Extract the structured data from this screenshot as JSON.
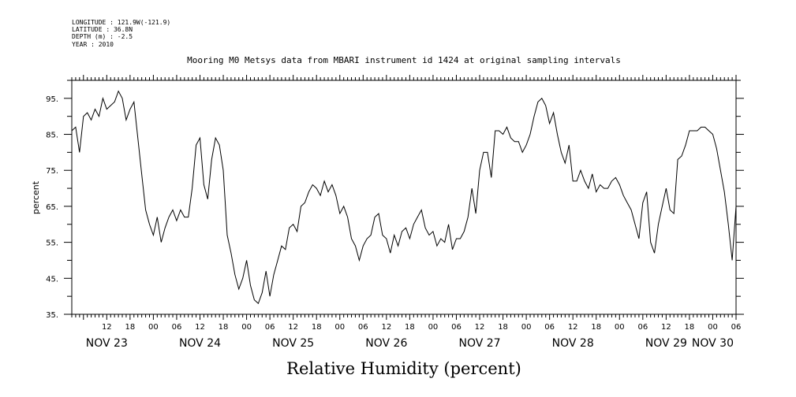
{
  "meta": {
    "longitude": "LONGITUDE : 121.9W(-121.9)",
    "latitude": "LATITUDE : 36.8N",
    "depth": "DEPTH (m) : -2.5",
    "year": "YEAR : 2010"
  },
  "chart_data": {
    "type": "line",
    "title": "Mooring M0 Metsys data from MBARI instrument id 1424 at original sampling intervals",
    "xlabel": "Relative Humidity (percent)",
    "ylabel": "percent",
    "ylim": [
      35,
      100
    ],
    "y_ticks": [
      35,
      45,
      55,
      65,
      75,
      85,
      95
    ],
    "y_tick_labels": [
      "35.",
      "45.",
      "55.",
      "65.",
      "75.",
      "85.",
      "95."
    ],
    "x_unit": "hours since Nov 23 00:00, 2010",
    "xlim": [
      3,
      174
    ],
    "x_hour_ticks": [
      {
        "h": 12,
        "label": "12"
      },
      {
        "h": 18,
        "label": "18"
      },
      {
        "h": 24,
        "label": "00"
      },
      {
        "h": 30,
        "label": "06"
      },
      {
        "h": 36,
        "label": "12"
      },
      {
        "h": 42,
        "label": "18"
      },
      {
        "h": 48,
        "label": "00"
      },
      {
        "h": 54,
        "label": "06"
      },
      {
        "h": 60,
        "label": "12"
      },
      {
        "h": 66,
        "label": "18"
      },
      {
        "h": 72,
        "label": "00"
      },
      {
        "h": 78,
        "label": "06"
      },
      {
        "h": 84,
        "label": "12"
      },
      {
        "h": 90,
        "label": "18"
      },
      {
        "h": 96,
        "label": "00"
      },
      {
        "h": 102,
        "label": "06"
      },
      {
        "h": 108,
        "label": "12"
      },
      {
        "h": 114,
        "label": "18"
      },
      {
        "h": 120,
        "label": "00"
      },
      {
        "h": 126,
        "label": "06"
      },
      {
        "h": 132,
        "label": "12"
      },
      {
        "h": 138,
        "label": "18"
      },
      {
        "h": 144,
        "label": "00"
      },
      {
        "h": 150,
        "label": "06"
      },
      {
        "h": 156,
        "label": "12"
      },
      {
        "h": 162,
        "label": "18"
      },
      {
        "h": 168,
        "label": "00"
      },
      {
        "h": 174,
        "label": "06"
      }
    ],
    "x_day_labels": [
      {
        "h": 12,
        "label": "NOV 23"
      },
      {
        "h": 36,
        "label": "NOV 24"
      },
      {
        "h": 60,
        "label": "NOV 25"
      },
      {
        "h": 84,
        "label": "NOV 26"
      },
      {
        "h": 108,
        "label": "NOV 27"
      },
      {
        "h": 132,
        "label": "NOV 28"
      },
      {
        "h": 156,
        "label": "NOV 29"
      },
      {
        "h": 168,
        "label": "NOV 30"
      }
    ],
    "grid": false,
    "series": [
      {
        "color": "#000000",
        "x": [
          3,
          4,
          5,
          6,
          7,
          8,
          9,
          10,
          11,
          12,
          13,
          14,
          15,
          16,
          17,
          18,
          19,
          20,
          21,
          22,
          23,
          24,
          25,
          26,
          27,
          28,
          29,
          30,
          31,
          32,
          33,
          34,
          35,
          36,
          37,
          38,
          39,
          40,
          41,
          42,
          43,
          44,
          45,
          46,
          47,
          48,
          49,
          50,
          51,
          52,
          53,
          54,
          55,
          56,
          57,
          58,
          59,
          60,
          61,
          62,
          63,
          64,
          65,
          66,
          67,
          68,
          69,
          70,
          71,
          72,
          73,
          74,
          75,
          76,
          77,
          78,
          79,
          80,
          81,
          82,
          83,
          84,
          85,
          86,
          87,
          88,
          89,
          90,
          91,
          92,
          93,
          94,
          95,
          96,
          97,
          98,
          99,
          100,
          101,
          102,
          103,
          104,
          105,
          106,
          107,
          108,
          109,
          110,
          111,
          112,
          113,
          114,
          115,
          116,
          117,
          118,
          119,
          120,
          121,
          122,
          123,
          124,
          125,
          126,
          127,
          128,
          129,
          130,
          131,
          132,
          133,
          134,
          135,
          136,
          137,
          138,
          139,
          140,
          141,
          142,
          143,
          144,
          145,
          146,
          147,
          148,
          149,
          150,
          151,
          152,
          153,
          154,
          155,
          156,
          157,
          158,
          159,
          160,
          161,
          162,
          163,
          164,
          165,
          166,
          167,
          168,
          169,
          170,
          171,
          172,
          173,
          174
        ],
        "y": [
          86,
          87,
          80,
          90,
          91,
          89,
          92,
          90,
          95,
          92,
          93,
          94,
          97,
          95,
          89,
          92,
          94,
          84,
          74,
          64,
          60,
          57,
          62,
          55,
          59,
          62,
          64,
          61,
          64,
          62,
          62,
          70,
          82,
          84,
          71,
          67,
          78,
          84,
          82,
          75,
          57,
          52,
          46,
          42,
          45,
          50,
          43,
          39,
          38,
          41,
          47,
          40,
          46,
          50,
          54,
          53,
          59,
          60,
          58,
          65,
          66,
          69,
          71,
          70,
          68,
          72,
          69,
          71,
          68,
          63,
          65,
          62,
          56,
          54,
          50,
          54,
          56,
          57,
          62,
          63,
          57,
          56,
          52,
          57,
          54,
          58,
          59,
          56,
          60,
          62,
          64,
          59,
          57,
          58,
          54,
          56,
          55,
          60,
          53,
          56,
          56,
          58,
          62,
          70,
          63,
          75,
          80,
          80,
          73,
          86,
          86,
          85,
          87,
          84,
          83,
          83,
          80,
          82,
          85,
          90,
          94,
          95,
          93,
          88,
          91,
          85,
          80,
          77,
          82,
          72,
          72,
          75,
          72,
          70,
          74,
          69,
          71,
          70,
          70,
          72,
          73,
          71,
          68,
          66,
          64,
          60,
          56,
          66,
          69,
          55,
          52,
          60,
          65,
          70,
          64,
          63,
          78,
          79,
          82,
          86,
          86,
          86,
          87,
          87,
          86,
          85,
          81,
          75,
          69,
          60,
          50,
          65
        ]
      }
    ]
  }
}
